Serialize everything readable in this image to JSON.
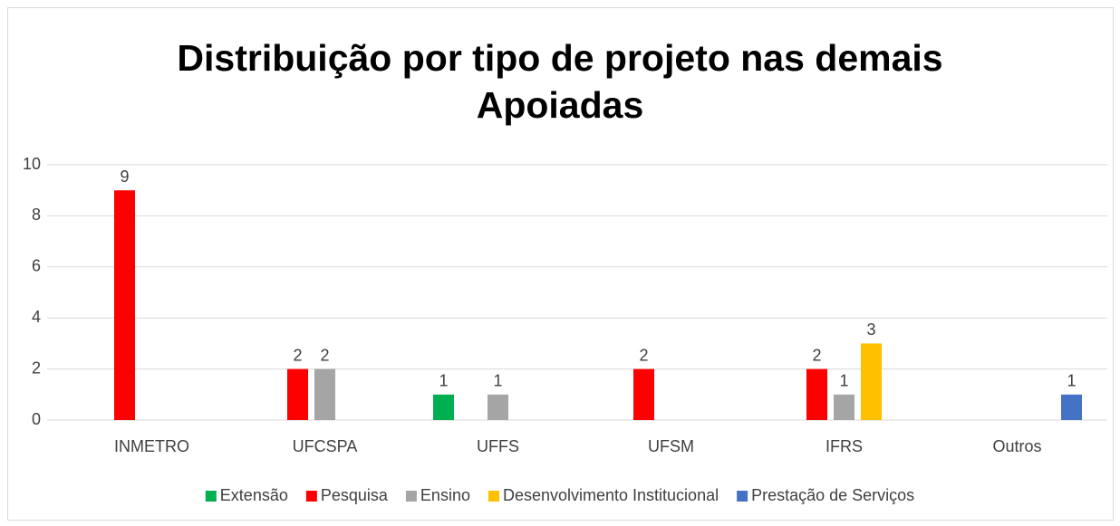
{
  "chart_data": {
    "type": "bar",
    "title": "Distribuição por tipo de projeto nas demais Apoiadas",
    "categories": [
      "INMETRO",
      "UFCSPA",
      "UFFS",
      "UFSM",
      "IFRS",
      "Outros"
    ],
    "series": [
      {
        "name": "Extensão",
        "color": "#00b050",
        "values": [
          null,
          null,
          1,
          null,
          null,
          null
        ]
      },
      {
        "name": "Pesquisa",
        "color": "#ff0000",
        "values": [
          9,
          2,
          null,
          2,
          2,
          null
        ]
      },
      {
        "name": "Ensino",
        "color": "#a5a5a5",
        "values": [
          null,
          2,
          1,
          null,
          1,
          null
        ]
      },
      {
        "name": "Desenvolvimento Institucional",
        "color": "#ffc000",
        "values": [
          null,
          null,
          null,
          null,
          3,
          null
        ]
      },
      {
        "name": "Prestação de Serviços",
        "color": "#4472c4",
        "values": [
          null,
          null,
          null,
          null,
          null,
          1
        ]
      }
    ],
    "ylim": [
      0,
      10
    ],
    "yticks": [
      0,
      2,
      4,
      6,
      8,
      10
    ],
    "grid": true,
    "legend": "bottom"
  }
}
